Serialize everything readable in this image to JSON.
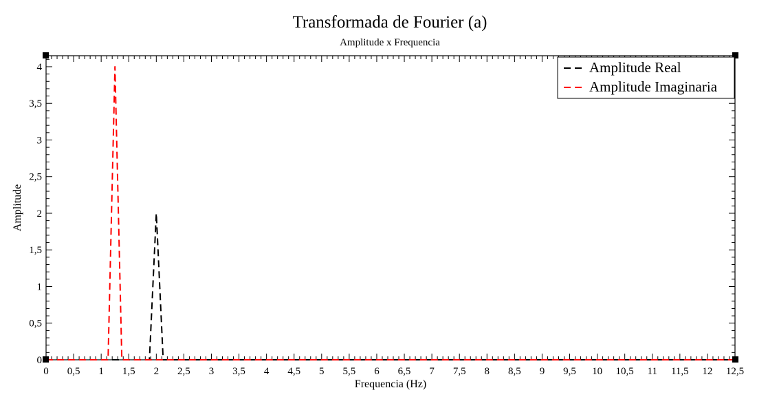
{
  "chart_data": {
    "type": "line",
    "title": "Transformada de Fourier (a)",
    "subtitle": "Amplitude x Frequencia",
    "xlabel": "Frequencia (Hz)",
    "ylabel": "Amplitude",
    "xlim": [
      0,
      12.5
    ],
    "ylim": [
      0,
      4.15
    ],
    "xticks": [
      0,
      0.5,
      1,
      1.5,
      2,
      2.5,
      3,
      3.5,
      4,
      4.5,
      5,
      5.5,
      6,
      6.5,
      7,
      7.5,
      8,
      8.5,
      9,
      9.5,
      10,
      10.5,
      11,
      11.5,
      12,
      12.5
    ],
    "xtick_labels": [
      "0",
      "0,5",
      "1",
      "1,5",
      "2",
      "2,5",
      "3",
      "3,5",
      "4",
      "4,5",
      "5",
      "5,5",
      "6",
      "6,5",
      "7",
      "7,5",
      "8",
      "8,5",
      "9",
      "9,5",
      "10",
      "10,5",
      "11",
      "11,5",
      "12",
      "12,5"
    ],
    "yticks": [
      0,
      0.5,
      1,
      1.5,
      2,
      2.5,
      3,
      3.5,
      4
    ],
    "ytick_labels": [
      "0",
      "0,5",
      "1",
      "1,5",
      "2",
      "2,5",
      "3",
      "3,5",
      "4"
    ],
    "legend_position": "top-right",
    "grid": false,
    "series": [
      {
        "name": "Amplitude Real",
        "color": "#000000",
        "style": "dashed",
        "x": [
          0,
          1.875,
          2.0,
          2.125,
          12.5
        ],
        "y": [
          0,
          0,
          2,
          0,
          0
        ]
      },
      {
        "name": "Amplitude Imaginaria",
        "color": "#ff0000",
        "style": "dashed",
        "x": [
          0,
          1.125,
          1.25,
          1.375,
          12.5
        ],
        "y": [
          0,
          0,
          4,
          0,
          0
        ]
      }
    ]
  }
}
